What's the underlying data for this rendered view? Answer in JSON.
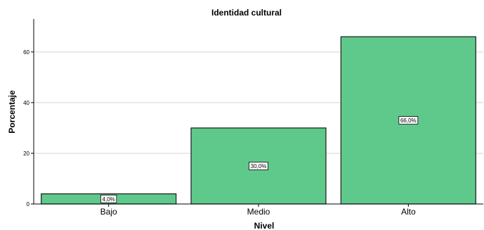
{
  "chart_data": {
    "type": "bar",
    "title": "Identidad cultural",
    "xlabel": "Nivel",
    "ylabel": "Porcentaje",
    "categories": [
      "Bajo",
      "Medio",
      "Alto"
    ],
    "values": [
      4.0,
      30.0,
      66.0
    ],
    "data_labels": [
      "4,0%",
      "30,0%",
      "66,0%"
    ],
    "yticks": [
      0,
      20,
      40,
      60
    ],
    "ylim": [
      0,
      73
    ],
    "grid": true,
    "bar_color": "#5ec98a",
    "bar_stroke": "#1a1a1a"
  }
}
